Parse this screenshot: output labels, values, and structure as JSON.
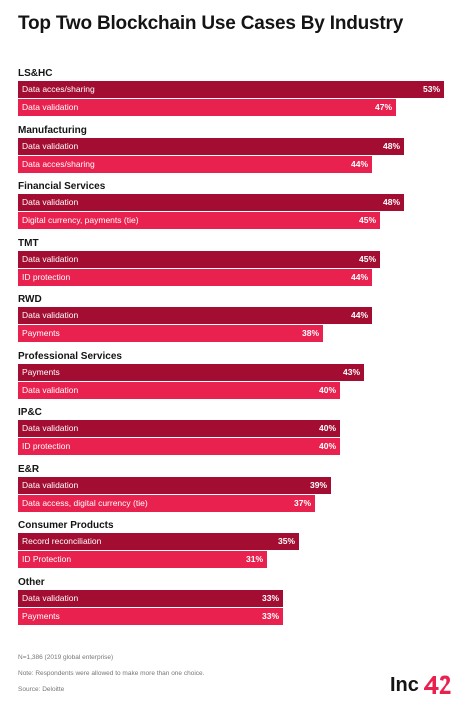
{
  "header": {
    "title": "Top Two Blockchain Use Cases By Industry"
  },
  "colors": {
    "primary": "#a30d32",
    "secondary": "#e8214f"
  },
  "chart_data": {
    "type": "bar",
    "orientation": "horizontal",
    "title": "Top Two Blockchain Use Cases By Industry",
    "unit": "%",
    "xlim": [
      0,
      53
    ],
    "groups": [
      {
        "name": "LS&HC",
        "bars": [
          {
            "label": "Data acces/sharing",
            "value": 53,
            "display": "53%"
          },
          {
            "label": "Data validation",
            "value": 47,
            "display": "47%"
          }
        ]
      },
      {
        "name": "Manufacturing",
        "bars": [
          {
            "label": "Data validation",
            "value": 48,
            "display": "48%"
          },
          {
            "label": "Data acces/sharing",
            "value": 44,
            "display": "44%"
          }
        ]
      },
      {
        "name": "Financial Services",
        "bars": [
          {
            "label": "Data validation",
            "value": 48,
            "display": "48%"
          },
          {
            "label": "Digital currency, payments (tie)",
            "value": 45,
            "display": "45%"
          }
        ]
      },
      {
        "name": "TMT",
        "bars": [
          {
            "label": "Data validation",
            "value": 45,
            "display": "45%"
          },
          {
            "label": "ID protection",
            "value": 44,
            "display": "44%"
          }
        ]
      },
      {
        "name": "RWD",
        "bars": [
          {
            "label": "Data validation",
            "value": 44,
            "display": "44%"
          },
          {
            "label": "Payments",
            "value": 38,
            "display": "38%"
          }
        ]
      },
      {
        "name": "Professional Services",
        "bars": [
          {
            "label": "Payments",
            "value": 43,
            "display": "43%"
          },
          {
            "label": "Data validation",
            "value": 40,
            "display": "40%"
          }
        ]
      },
      {
        "name": "IP&C",
        "bars": [
          {
            "label": "Data validation",
            "value": 40,
            "display": "40%"
          },
          {
            "label": "ID protection",
            "value": 40,
            "display": "40%"
          }
        ]
      },
      {
        "name": "E&R",
        "bars": [
          {
            "label": "Data validation",
            "value": 39,
            "display": "39%"
          },
          {
            "label": "Data access, digital currency (tie)",
            "value": 37,
            "display": "37%"
          }
        ]
      },
      {
        "name": "Consumer Products",
        "bars": [
          {
            "label": "Record reconciliation",
            "value": 35,
            "display": "35%"
          },
          {
            "label": "ID Protection",
            "value": 31,
            "display": "31%"
          }
        ]
      },
      {
        "name": "Other",
        "bars": [
          {
            "label": "Data validation",
            "value": 33,
            "display": "33%"
          },
          {
            "label": "Payments",
            "value": 33,
            "display": "33%"
          }
        ]
      }
    ]
  },
  "footer": {
    "note1": "N=1,386 (2019 global enterprise)",
    "note2": "Note: Respondents were allowed to make more than one choice.",
    "source": "Source: Deloitte",
    "logo_text": "Inc42",
    "logo_color": "#e8214f"
  }
}
